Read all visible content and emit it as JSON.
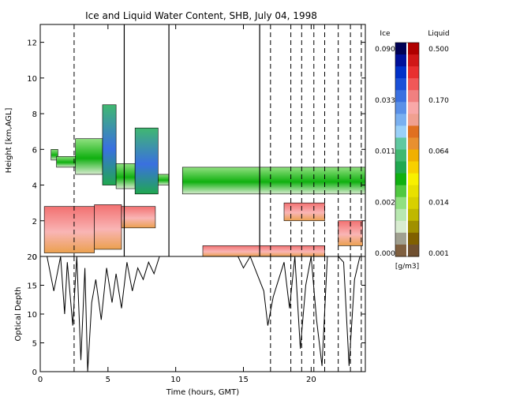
{
  "chart_data": [
    {
      "type": "heatmap",
      "title": "Ice and Liquid Water Content, SHB, July 04, 1998",
      "xlabel": "",
      "ylabel": "Height [km,AGL]",
      "xlim": [
        0,
        24
      ],
      "ylim": [
        0,
        13
      ],
      "yticks": [
        0,
        2,
        4,
        6,
        8,
        10,
        12
      ],
      "legend": "right",
      "colorbar": {
        "unit": "[g/m3]",
        "ice_title": "Ice",
        "liquid_title": "Liquid",
        "ice_ticks": [
          "0.090",
          "0.033",
          "0.011",
          "0.002",
          "0.000"
        ],
        "liquid_ticks": [
          "0.500",
          "0.170",
          "0.064",
          "0.014",
          "0.001"
        ],
        "ice_colors": [
          "#000055",
          "#00109a",
          "#0030c8",
          "#1a50d8",
          "#3a70e0",
          "#5a90e8",
          "#7ab0f0",
          "#9ad0f8",
          "#60c8a0",
          "#40b870",
          "#20a850",
          "#10b010",
          "#50c840",
          "#90e080",
          "#b8e8b0",
          "#d8ecd0",
          "#a0a090",
          "#806040"
        ],
        "liquid_colors": [
          "#b00000",
          "#d01818",
          "#e83030",
          "#f05858",
          "#f08080",
          "#f8a8a8",
          "#f0a090",
          "#e07020",
          "#e89030",
          "#f0b000",
          "#f8d000",
          "#f8f000",
          "#e8e000",
          "#d8d000",
          "#c0b800",
          "#a09000",
          "#806000",
          "#705030"
        ],
        "ice_layers": [
          {
            "x0": 0.8,
            "x1": 1.3,
            "bottom": 5.4,
            "top": 6.0
          },
          {
            "x0": 1.2,
            "x1": 3.0,
            "bottom": 5.0,
            "top": 5.6
          },
          {
            "x0": 2.6,
            "x1": 4.6,
            "bottom": 4.6,
            "top": 6.6
          },
          {
            "x0": 4.6,
            "x1": 5.6,
            "bottom": 4.0,
            "top": 8.5
          },
          {
            "x0": 5.6,
            "x1": 7.0,
            "bottom": 3.8,
            "top": 5.2
          },
          {
            "x0": 7.0,
            "x1": 8.7,
            "bottom": 3.5,
            "top": 7.2
          },
          {
            "x0": 8.7,
            "x1": 9.5,
            "bottom": 4.0,
            "top": 4.6
          },
          {
            "x0": 10.5,
            "x1": 24.0,
            "bottom": 3.5,
            "top": 5.0
          }
        ],
        "liquid_layers": [
          {
            "x0": 0.3,
            "x1": 4.0,
            "bottom": 0.2,
            "top": 2.8
          },
          {
            "x0": 4.0,
            "x1": 6.0,
            "bottom": 0.4,
            "top": 2.9
          },
          {
            "x0": 6.0,
            "x1": 8.5,
            "bottom": 1.6,
            "top": 2.8
          },
          {
            "x0": 12.0,
            "x1": 21.0,
            "bottom": 0.0,
            "top": 0.6
          },
          {
            "x0": 18.0,
            "x1": 21.0,
            "bottom": 2.0,
            "top": 3.0
          },
          {
            "x0": 22.0,
            "x1": 23.8,
            "bottom": 0.6,
            "top": 2.0
          }
        ]
      },
      "solid_lines": [
        6.2,
        9.5,
        16.2
      ],
      "dashed_lines": [
        2.5,
        17.0,
        18.5,
        19.3,
        20.2,
        21.0,
        22.0,
        22.9,
        23.7
      ]
    },
    {
      "type": "line",
      "xlabel": "Time (hours, GMT)",
      "ylabel": "Optical Depth",
      "xlim": [
        0,
        24
      ],
      "ylim": [
        0,
        20
      ],
      "xticks": [
        0,
        5,
        10,
        15,
        20
      ],
      "yticks": [
        0,
        5,
        10,
        15,
        20
      ],
      "series": [
        {
          "x": [
            0.5,
            1.0,
            1.5,
            1.8,
            2.0,
            2.4,
            2.7,
            3.0,
            3.3,
            3.5,
            3.8,
            4.1,
            4.5,
            4.9,
            5.3,
            5.6,
            6.0,
            6.4,
            6.8,
            7.2,
            7.6,
            8.0,
            8.4,
            8.8,
            9.3,
            9.6
          ],
          "y": [
            20,
            14,
            20,
            10,
            19,
            8,
            20,
            2,
            18,
            0,
            12,
            16,
            9,
            18,
            12,
            17,
            11,
            19,
            14,
            18,
            16,
            19,
            17,
            20,
            20,
            20
          ]
        },
        {
          "x": [
            14.6,
            15.0,
            15.5,
            16.0,
            16.5,
            16.8,
            17.2,
            17.6,
            18.0,
            18.4,
            18.8,
            19.2,
            19.6,
            20.0,
            20.4,
            20.8,
            21.2,
            21.6,
            22.0,
            22.4,
            22.8,
            23.2,
            23.6,
            24.0
          ],
          "y": [
            20,
            18,
            20,
            17,
            14,
            8,
            13,
            16,
            19,
            11,
            20,
            4,
            15,
            20,
            9,
            1,
            20,
            20,
            20,
            19,
            1,
            16,
            20,
            20
          ]
        }
      ]
    }
  ]
}
